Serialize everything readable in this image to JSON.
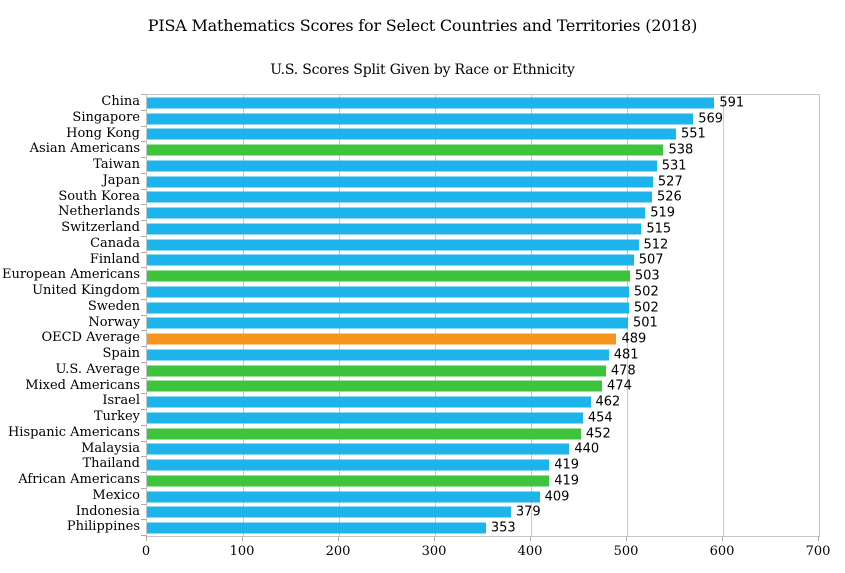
{
  "chart_data": {
    "type": "bar",
    "orientation": "horizontal",
    "title": "PISA Mathematics Scores for Select Countries and Territories (2018)",
    "subtitle": "U.S. Scores Split Given by Race or Ethnicity",
    "xlabel": "",
    "ylabel": "",
    "xlim": [
      0,
      700
    ],
    "xticks": [
      0,
      100,
      200,
      300,
      400,
      500,
      600,
      700
    ],
    "grid": "vertical",
    "legend": "none",
    "value_labels": true,
    "colors": {
      "country": "#1cb4ea",
      "us_group": "#3ec33c",
      "oecd_average": "#f7941d"
    },
    "grid_color": "#c9c9c9",
    "bars": [
      {
        "label": "China",
        "value": 591,
        "group": "country"
      },
      {
        "label": "Singapore",
        "value": 569,
        "group": "country"
      },
      {
        "label": "Hong Kong",
        "value": 551,
        "group": "country"
      },
      {
        "label": "Asian Americans",
        "value": 538,
        "group": "us_group"
      },
      {
        "label": "Taiwan",
        "value": 531,
        "group": "country"
      },
      {
        "label": "Japan",
        "value": 527,
        "group": "country"
      },
      {
        "label": "South Korea",
        "value": 526,
        "group": "country"
      },
      {
        "label": "Netherlands",
        "value": 519,
        "group": "country"
      },
      {
        "label": "Switzerland",
        "value": 515,
        "group": "country"
      },
      {
        "label": "Canada",
        "value": 512,
        "group": "country"
      },
      {
        "label": "Finland",
        "value": 507,
        "group": "country"
      },
      {
        "label": "European Americans",
        "value": 503,
        "group": "us_group"
      },
      {
        "label": "United Kingdom",
        "value": 502,
        "group": "country"
      },
      {
        "label": "Sweden",
        "value": 502,
        "group": "country"
      },
      {
        "label": "Norway",
        "value": 501,
        "group": "country"
      },
      {
        "label": "OECD Average",
        "value": 489,
        "group": "oecd_average"
      },
      {
        "label": "Spain",
        "value": 481,
        "group": "country"
      },
      {
        "label": "U.S. Average",
        "value": 478,
        "group": "us_group"
      },
      {
        "label": "Mixed Americans",
        "value": 474,
        "group": "us_group"
      },
      {
        "label": "Israel",
        "value": 462,
        "group": "country"
      },
      {
        "label": "Turkey",
        "value": 454,
        "group": "country"
      },
      {
        "label": "Hispanic Americans",
        "value": 452,
        "group": "us_group"
      },
      {
        "label": "Malaysia",
        "value": 440,
        "group": "country"
      },
      {
        "label": "Thailand",
        "value": 419,
        "group": "country"
      },
      {
        "label": "African Americans",
        "value": 419,
        "group": "us_group"
      },
      {
        "label": "Mexico",
        "value": 409,
        "group": "country"
      },
      {
        "label": "Indonesia",
        "value": 379,
        "group": "country"
      },
      {
        "label": "Philippines",
        "value": 353,
        "group": "country"
      }
    ]
  }
}
